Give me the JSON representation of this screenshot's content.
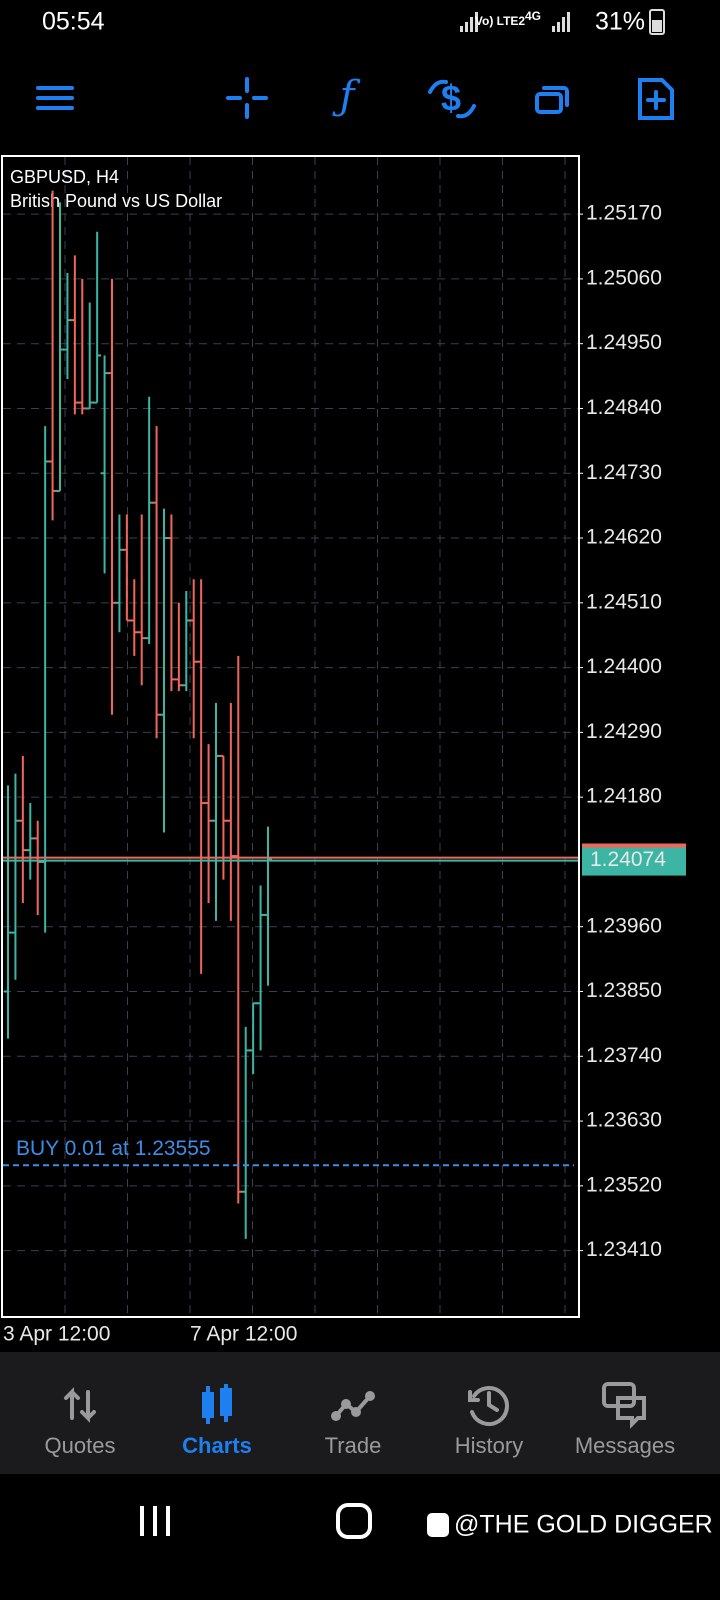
{
  "status_bar": {
    "time": "05:54",
    "network": "Vo) LTE2",
    "signal_type": "4G",
    "battery": "31%"
  },
  "chart_data": {
    "type": "ohlc",
    "title": "GBPUSD, H4",
    "subtitle": "British Pound vs US Dollar",
    "open": [
      1.2385,
      1.2395,
      1.2414,
      1.2409,
      1.2411,
      1.2407,
      1.2475,
      1.247,
      1.2494,
      1.2499,
      1.2485,
      1.2484,
      1.2485,
      1.2473,
      1.249,
      1.2451,
      1.246,
      1.2448,
      1.2446,
      1.2445,
      1.2468,
      1.2432,
      1.2462,
      1.2438,
      1.2437,
      1.2448,
      1.2441,
      1.2417,
      1.2414,
      1.2425,
      1.2414,
      1.2408,
      1.2351,
      1.2375,
      1.2383,
      1.2398
    ],
    "high": [
      1.242,
      1.2422,
      1.2425,
      1.2417,
      1.2414,
      1.2481,
      1.2521,
      1.2519,
      1.2507,
      1.251,
      1.2506,
      1.2502,
      1.2514,
      1.2493,
      1.2506,
      1.2466,
      1.2466,
      1.2455,
      1.2466,
      1.2486,
      1.2481,
      1.2467,
      1.2466,
      1.2451,
      1.2453,
      1.2455,
      1.2455,
      1.2427,
      1.2434,
      1.2425,
      1.2434,
      1.2442,
      1.2379,
      1.2383,
      1.2403,
      1.2413
    ],
    "low": [
      1.2377,
      1.2387,
      1.24,
      1.2404,
      1.2398,
      1.2395,
      1.2465,
      1.247,
      1.2489,
      1.2483,
      1.2483,
      1.2484,
      1.2485,
      1.2456,
      1.2432,
      1.2446,
      1.2448,
      1.2442,
      1.2437,
      1.2444,
      1.2428,
      1.2412,
      1.2436,
      1.2436,
      1.2436,
      1.2428,
      1.2388,
      1.24,
      1.2397,
      1.2404,
      1.2397,
      1.2349,
      1.2343,
      1.2371,
      1.2375,
      1.2386
    ],
    "close": [
      1.2395,
      1.2414,
      1.2409,
      1.2411,
      1.2407,
      1.2475,
      1.247,
      1.2494,
      1.2499,
      1.2485,
      1.2484,
      1.2485,
      1.2493,
      1.249,
      1.2451,
      1.246,
      1.2448,
      1.2446,
      1.2445,
      1.2468,
      1.2432,
      1.2462,
      1.2438,
      1.2437,
      1.2448,
      1.2441,
      1.2417,
      1.2414,
      1.2425,
      1.2414,
      1.2408,
      1.2351,
      1.2375,
      1.2383,
      1.2398,
      1.24074
    ],
    "up_color": "#3cb5a5",
    "down_color": "#f0675b",
    "ylim": [
      1.23299,
      1.25267
    ],
    "yticks": [
      {
        "value": 1.2517,
        "label": "1.25170"
      },
      {
        "value": 1.2506,
        "label": "1.25060"
      },
      {
        "value": 1.2495,
        "label": "1.24950"
      },
      {
        "value": 1.2484,
        "label": "1.24840"
      },
      {
        "value": 1.2473,
        "label": "1.24730"
      },
      {
        "value": 1.2462,
        "label": "1.24620"
      },
      {
        "value": 1.2451,
        "label": "1.24510"
      },
      {
        "value": 1.244,
        "label": "1.24400"
      },
      {
        "value": 1.2429,
        "label": "1.24290"
      },
      {
        "value": 1.2418,
        "label": "1.24180"
      },
      {
        "value": 1.2396,
        "label": "1.23960"
      },
      {
        "value": 1.2385,
        "label": "1.23850"
      },
      {
        "value": 1.2374,
        "label": "1.23740"
      },
      {
        "value": 1.2363,
        "label": "1.23630"
      },
      {
        "value": 1.2352,
        "label": "1.23520"
      },
      {
        "value": 1.2341,
        "label": "1.23410"
      }
    ],
    "x_labels": [
      "3 Apr 12:00",
      "7 Apr 12:00"
    ],
    "current_price": 1.24074,
    "order_line": {
      "label": "BUY 0.01 at 1.23555",
      "price": 1.23555
    },
    "grid": true
  },
  "nav": {
    "items": [
      "Quotes",
      "Charts",
      "Trade",
      "History",
      "Messages"
    ]
  },
  "watermark": "@THE GOLD DIGGER"
}
